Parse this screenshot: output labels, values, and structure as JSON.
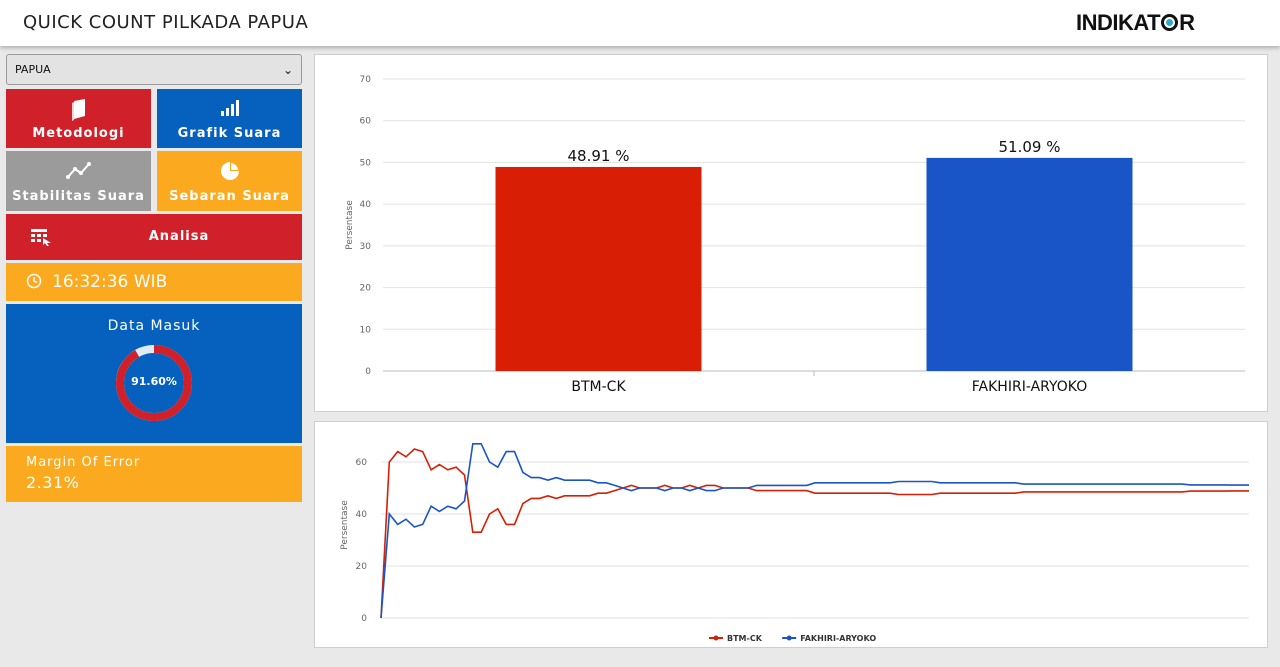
{
  "header": {
    "title": "QUICK COUNT PILKADA PAPUA",
    "logo_text": "INDIKATOR",
    "logo_text_before_o": "INDIKAT",
    "logo_text_after_o": "R"
  },
  "region_select": {
    "value": "PAPUA"
  },
  "menu": {
    "metodologi": "Metodologi",
    "grafik_suara": "Grafik Suara",
    "stabilitas_suara": "Stabilitas Suara",
    "sebaran_suara": "Sebaran Suara",
    "analisa": "Analisa"
  },
  "clock": {
    "time": "16:32:36 WIB"
  },
  "data_masuk": {
    "title": "Data Masuk",
    "percent_label": "91.60%",
    "percent": 91.6
  },
  "margin_of_error": {
    "label": "Margin Of Error",
    "value": "2.31%"
  },
  "colors": {
    "red": "#d0202a",
    "blue": "#0561bd",
    "grey": "#9b9b9b",
    "orange": "#fbaa1f",
    "bar_red": "#d81e05",
    "bar_blue": "#1a55c8"
  },
  "chart_data": [
    {
      "type": "bar",
      "categories": [
        "BTM-CK",
        "FAKHIRI-ARYOKO"
      ],
      "values": [
        48.91,
        51.09
      ],
      "data_labels": [
        "48.91 %",
        "51.09 %"
      ],
      "colors": [
        "#d81e05",
        "#1a55c8"
      ],
      "ylabel": "Persentase",
      "ylim": [
        0,
        70
      ],
      "yticks": [
        0,
        10,
        20,
        30,
        40,
        50,
        60,
        70
      ],
      "grid": true
    },
    {
      "type": "line",
      "ylabel": "Persentase",
      "ylim": [
        0,
        70
      ],
      "yticks": [
        0,
        20,
        40,
        60
      ],
      "grid": true,
      "legend": "bottom-center",
      "series": [
        {
          "name": "BTM-CK",
          "color": "#d81e05",
          "values": [
            0,
            60,
            64,
            62,
            65,
            64,
            57,
            59,
            57,
            58,
            55,
            33,
            33,
            40,
            42,
            36,
            36,
            44,
            46,
            46,
            47,
            46,
            47,
            47,
            47,
            47,
            48,
            48,
            49,
            50,
            51,
            50,
            50,
            50,
            51,
            50,
            50,
            51,
            50,
            51,
            51,
            50,
            50,
            50,
            50,
            49,
            49,
            49,
            49,
            49,
            49,
            49,
            48,
            48,
            48,
            48,
            48,
            48,
            48,
            48,
            48,
            48,
            47.5,
            47.5,
            47.5,
            47.5,
            47.5,
            48,
            48,
            48,
            48,
            48,
            48,
            48,
            48,
            48,
            48,
            48.5,
            48.5,
            48.5,
            48.5,
            48.5,
            48.5,
            48.5,
            48.5,
            48.5,
            48.5,
            48.5,
            48.5,
            48.5,
            48.5,
            48.5,
            48.5,
            48.5,
            48.5,
            48.5,
            48.5,
            48.8,
            48.8,
            48.8,
            48.8,
            48.8,
            48.9,
            48.9,
            48.9
          ]
        },
        {
          "name": "FAKHIRI-ARYOKO",
          "color": "#1a55c8",
          "values": [
            0,
            40,
            36,
            38,
            35,
            36,
            43,
            41,
            43,
            42,
            45,
            67,
            67,
            60,
            58,
            64,
            64,
            56,
            54,
            54,
            53,
            54,
            53,
            53,
            53,
            53,
            52,
            52,
            51,
            50,
            49,
            50,
            50,
            50,
            49,
            50,
            50,
            49,
            50,
            49,
            49,
            50,
            50,
            50,
            50,
            51,
            51,
            51,
            51,
            51,
            51,
            51,
            52,
            52,
            52,
            52,
            52,
            52,
            52,
            52,
            52,
            52,
            52.5,
            52.5,
            52.5,
            52.5,
            52.5,
            52,
            52,
            52,
            52,
            52,
            52,
            52,
            52,
            52,
            52,
            51.5,
            51.5,
            51.5,
            51.5,
            51.5,
            51.5,
            51.5,
            51.5,
            51.5,
            51.5,
            51.5,
            51.5,
            51.5,
            51.5,
            51.5,
            51.5,
            51.5,
            51.5,
            51.5,
            51.5,
            51.2,
            51.2,
            51.2,
            51.2,
            51.2,
            51.1,
            51.1,
            51.1
          ]
        }
      ]
    }
  ]
}
